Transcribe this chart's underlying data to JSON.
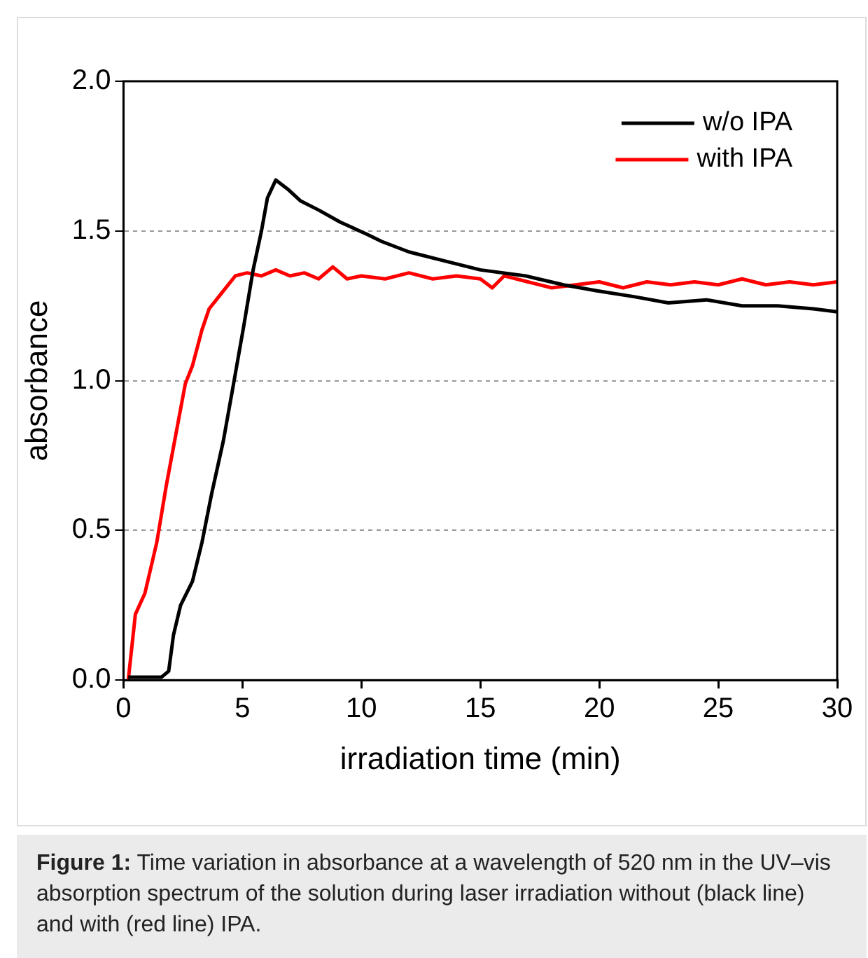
{
  "chart_data": {
    "type": "line",
    "xlabel": "irradiation time (min)",
    "ylabel": "absorbance",
    "xlim": [
      0,
      30
    ],
    "xticks": [
      0,
      5,
      10,
      15,
      20,
      25,
      30
    ],
    "ylim": [
      0,
      2
    ],
    "yticks": [
      {
        "value": 0,
        "label": "0.0"
      },
      {
        "value": 0.5,
        "label": "0.5"
      },
      {
        "value": 1,
        "label": "1.0"
      },
      {
        "value": 1.5,
        "label": "1.5"
      },
      {
        "value": 2,
        "label": "2.0"
      }
    ],
    "grid": "y",
    "legend": "top right",
    "marker": "none",
    "line_style": "solid",
    "series": [
      {
        "name": "w/o IPA",
        "color": "#000000",
        "x": [
          0.2,
          0.8,
          1.6,
          1.9,
          2.1,
          2.4,
          2.9,
          3.3,
          3.7,
          4.2,
          4.65,
          5.05,
          5.45,
          5.8,
          6.05,
          6.4,
          6.9,
          7.45,
          8.2,
          9.1,
          10.2,
          10.85,
          12,
          13.5,
          15,
          16.9,
          18.5,
          19.9,
          21.5,
          22.9,
          24.5,
          26,
          27.5,
          29,
          30
        ],
        "values": [
          0.01,
          0.01,
          0.01,
          0.03,
          0.15,
          0.25,
          0.33,
          0.46,
          0.62,
          0.8,
          1.0,
          1.18,
          1.37,
          1.5,
          1.61,
          1.67,
          1.64,
          1.6,
          1.57,
          1.53,
          1.49,
          1.465,
          1.43,
          1.4,
          1.37,
          1.35,
          1.32,
          1.3,
          1.28,
          1.26,
          1.27,
          1.25,
          1.25,
          1.24,
          1.23
        ]
      },
      {
        "name": "with IPA",
        "color": "#ff0000",
        "x": [
          0.2,
          0.5,
          0.9,
          1.4,
          1.8,
          2.2,
          2.6,
          2.9,
          3.3,
          3.6,
          4.1,
          4.7,
          5.2,
          5.8,
          6.4,
          7,
          7.6,
          8.2,
          8.8,
          9.4,
          10,
          11,
          12,
          13,
          14,
          15,
          15.5,
          16,
          17,
          18,
          19,
          20,
          21,
          22,
          23,
          24,
          25,
          26,
          27,
          28,
          29,
          30
        ],
        "values": [
          0,
          0.22,
          0.29,
          0.46,
          0.65,
          0.82,
          0.99,
          1.05,
          1.17,
          1.24,
          1.29,
          1.35,
          1.36,
          1.35,
          1.37,
          1.35,
          1.36,
          1.34,
          1.38,
          1.34,
          1.35,
          1.34,
          1.36,
          1.34,
          1.35,
          1.34,
          1.31,
          1.35,
          1.33,
          1.31,
          1.32,
          1.33,
          1.31,
          1.33,
          1.32,
          1.33,
          1.32,
          1.34,
          1.32,
          1.33,
          1.32,
          1.33
        ]
      }
    ],
    "annotations": [
      "Figure 1:",
      "Time variation in absorbance at a wavelength of 520 nm in the UV–vis absorption spectrum of the solution during laser irradiation without (black line) and with (red line) IPA."
    ]
  }
}
